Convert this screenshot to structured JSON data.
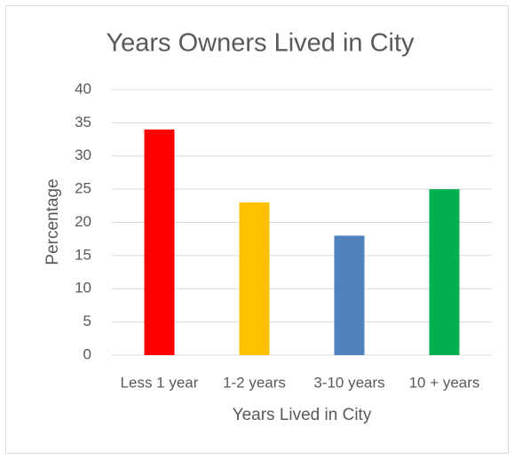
{
  "chart_data": {
    "type": "bar",
    "title": "Years Owners Lived in City",
    "x_label": "Years Lived in City",
    "y_label": "Percentage",
    "categories": [
      "Less 1 year",
      "1-2 years",
      "3-10 years",
      "10 + years"
    ],
    "values": [
      34,
      23,
      18,
      25
    ],
    "colors": [
      "#ff0000",
      "#ffc000",
      "#4f81bd",
      "#00b050"
    ],
    "ylim": [
      0,
      40
    ],
    "yticks": [
      0,
      5,
      10,
      15,
      20,
      25,
      30,
      35,
      40
    ],
    "grid": true
  }
}
